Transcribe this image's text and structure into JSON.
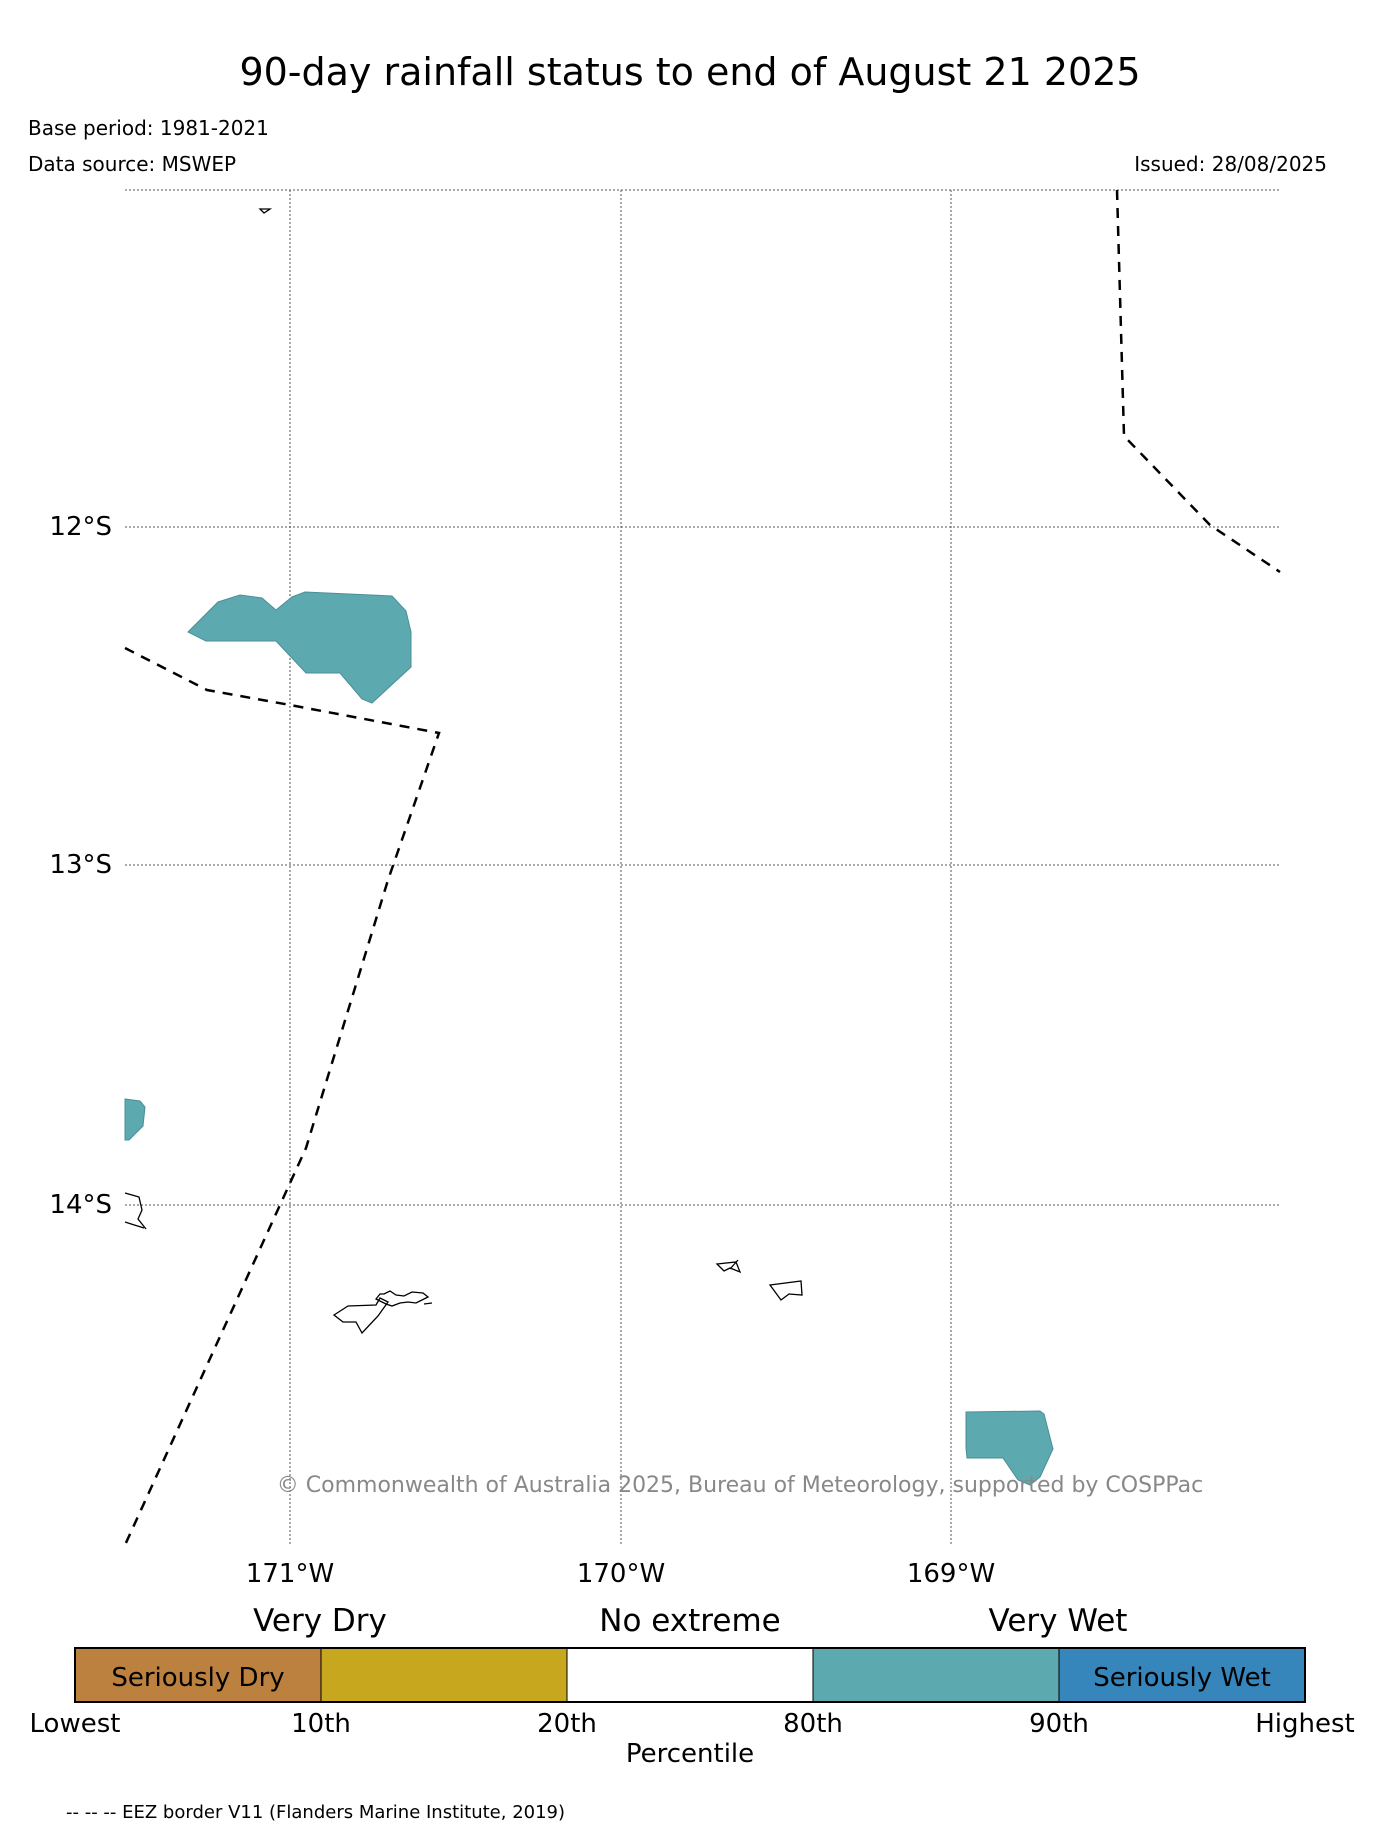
{
  "header": {
    "title": "90-day rainfall status to end of August 21 2025",
    "base_period": "Base period: 1981-2021",
    "data_source": "Data source: MSWEP",
    "issued": "Issued: 28/08/2025"
  },
  "map": {
    "latitude_labels": [
      "12°S",
      "13°S",
      "14°S"
    ],
    "longitude_labels": [
      "171°W",
      "170°W",
      "169°W"
    ],
    "copyright": "© Commonwealth of Australia 2025, Bureau of Meteorology, supported by COSPPac",
    "colors": {
      "very_wet_fill": "#5DA9B0",
      "eez_border": "#000000",
      "grid": "#555555"
    }
  },
  "legend": {
    "group_labels": [
      "Very Dry",
      "No extreme",
      "Very Wet"
    ],
    "boxes": [
      {
        "label": "Seriously Dry",
        "color": "#BC803F"
      },
      {
        "label": "",
        "color": "#C7A71E"
      },
      {
        "label": "",
        "color": "#FFFFFF"
      },
      {
        "label": "",
        "color": "#5DA9B0"
      },
      {
        "label": "Seriously Wet",
        "color": "#3685BB"
      }
    ],
    "percentile_ticks": [
      "Lowest",
      "10th",
      "20th",
      "80th",
      "90th",
      "Highest"
    ],
    "axis_label": "Percentile",
    "note": "-- -- -- EEZ border V11 (Flanders Marine Institute, 2019)"
  }
}
